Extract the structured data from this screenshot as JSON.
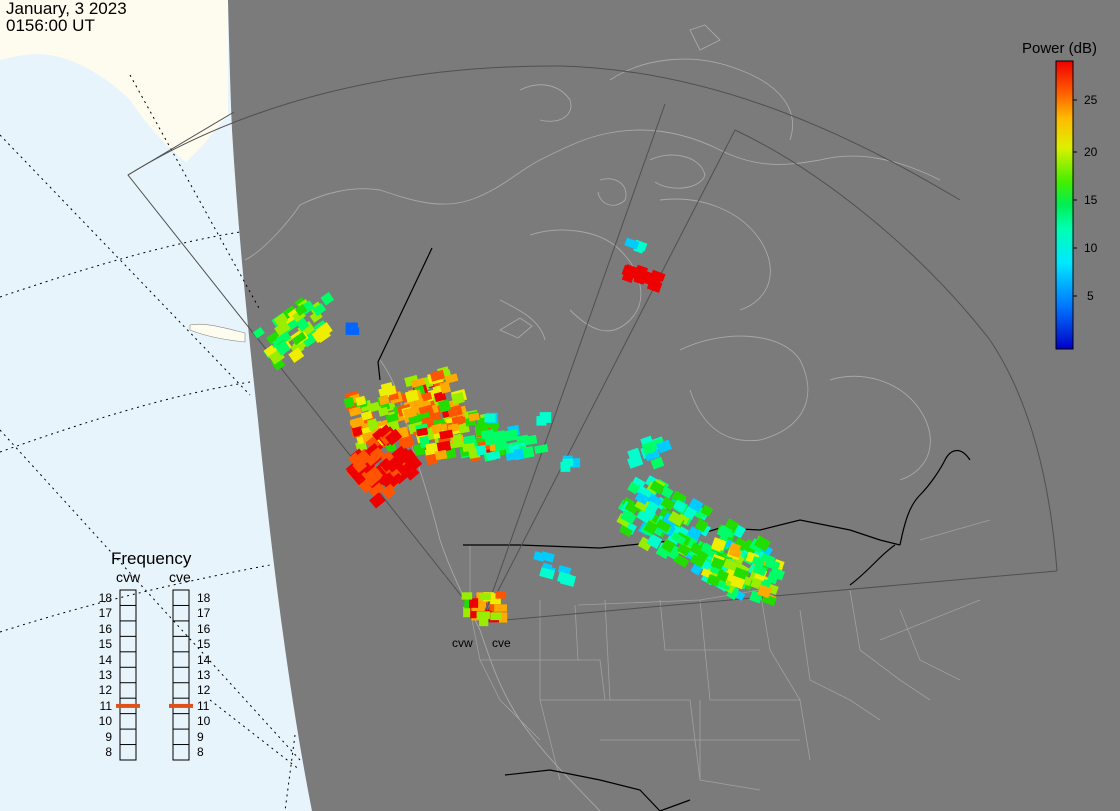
{
  "timestamp": {
    "date": "January, 3 2023",
    "time": "0156:00 UT"
  },
  "colorbar": {
    "title": "Power (dB)",
    "ticks": [
      "25",
      "20",
      "15",
      "10",
      "5"
    ],
    "colors": [
      "#0000c8",
      "#0066ff",
      "#00ccff",
      "#00ffcc",
      "#00ff66",
      "#22dd00",
      "#99ee00",
      "#eeee00",
      "#ffaa00",
      "#ff5500",
      "#ee0000"
    ]
  },
  "frequency_panel": {
    "title": "Frequency",
    "radars": [
      "cvw",
      "cve"
    ],
    "levels": [
      "18",
      "17",
      "16",
      "15",
      "14",
      "13",
      "12",
      "11",
      "10",
      "9",
      "8"
    ],
    "selected": {
      "cvw": 11,
      "cve": 11
    },
    "marker_color": "#e0501a"
  },
  "stations": [
    "cvw",
    "cve"
  ],
  "colors": {
    "ocean": "#e8f4fb",
    "land": "#fdfcee",
    "night": "#7b7b7b",
    "boundary": "#aaaaaa",
    "coast": "#000000"
  }
}
